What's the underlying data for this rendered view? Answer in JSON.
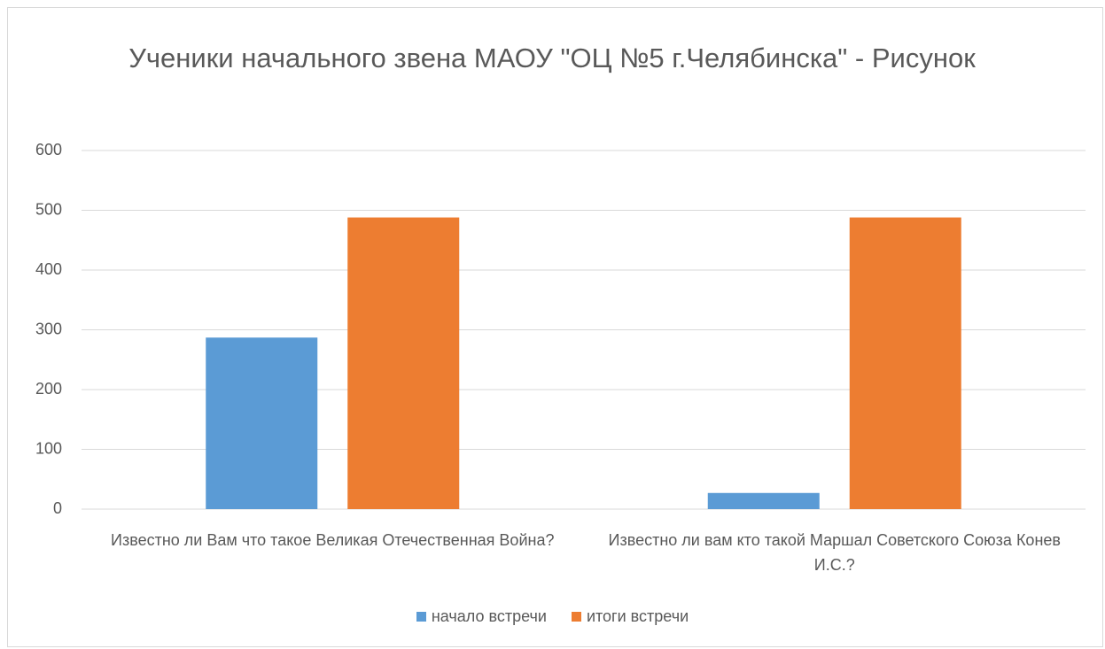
{
  "chart_data": {
    "type": "bar",
    "title": "Ученики  начального звена МАОУ \"ОЦ №5 г.Челябинска\" - Рисунок",
    "categories": [
      "Известно ли Вам что такое Великая Отечественная Война?",
      "Известно ли вам кто такой Маршал Советского Союза Конев И.С.?"
    ],
    "series": [
      {
        "name": "начало встречи",
        "color": "#5b9bd5",
        "values": [
          287,
          27
        ]
      },
      {
        "name": "итоги встречи",
        "color": "#ed7d31",
        "values": [
          488,
          488
        ]
      }
    ],
    "ylim": [
      0,
      600
    ],
    "yticks": [
      0,
      100,
      200,
      300,
      400,
      500,
      600
    ],
    "grid": true,
    "legend": "bottom"
  }
}
